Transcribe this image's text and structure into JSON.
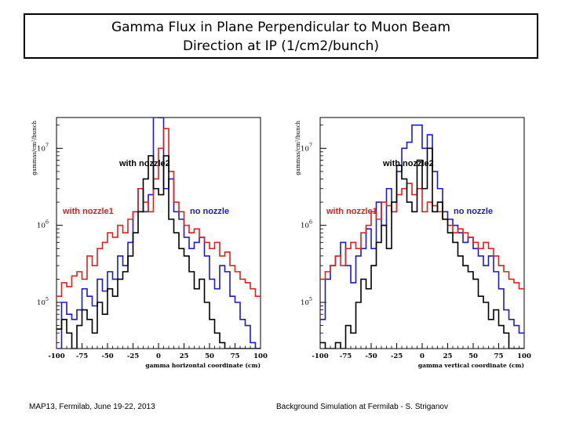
{
  "slide": {
    "title_line1": "Gamma Flux in Plane Perpendicular to Muon Beam",
    "title_line2": "Direction at IP (1/cm2/bunch)",
    "footer_left": "MAP13, Fermilab, June 19-22, 2013",
    "footer_right": "Background Simulation at Fermilab - S. Striganov"
  },
  "colors": {
    "blue": "#1a1acc",
    "red": "#e0201a",
    "black": "#000000"
  },
  "chart_data": [
    {
      "type": "line",
      "step": true,
      "ylabel": "gammas/cm²/bunch",
      "xlabel": "gamma horizontal coordinate (cm)",
      "xlim": [
        -100,
        100
      ],
      "ylim_log10": [
        4.4,
        7.4
      ],
      "x_ticks": [
        -100,
        -75,
        -50,
        -25,
        0,
        25,
        50,
        75,
        100
      ],
      "x_tick_labels": [
        "-100",
        "-75",
        "-50",
        "-25",
        "0",
        "25",
        "50",
        "75",
        "100"
      ],
      "y_ticks_log10": [
        5,
        6,
        7
      ],
      "y_tick_base": "10",
      "y_tick_exps": [
        "5",
        "6",
        "7"
      ],
      "annotations": {
        "nozzle2": "with nozzle2",
        "nozzle1": "with nozzle1",
        "nonozzle": "no nozzle"
      },
      "series": [
        {
          "name": "no nozzle",
          "color": "#1a1acc",
          "bin_width": 5,
          "values": [
            25000.0,
            100000.0,
            70000.0,
            60000.0,
            80000.0,
            150000.0,
            120000.0,
            90000.0,
            200000.0,
            140000.0,
            250000.0,
            200000.0,
            400000.0,
            300000.0,
            600000.0,
            1500000.0,
            3000000.0,
            1500000.0,
            2500000.0,
            28000000.0,
            25000000.0,
            3000000.0,
            4000000.0,
            1500000.0,
            1200000.0,
            700000.0,
            500000.0,
            600000.0,
            700000.0,
            400000.0,
            200000.0,
            150000.0,
            300000.0,
            250000.0,
            120000.0,
            100000.0,
            60000.0,
            50000.0,
            30000.0,
            25000.0
          ]
        },
        {
          "name": "with nozzle1",
          "color": "#e0201a",
          "bin_width": 5,
          "values": [
            120000.0,
            180000.0,
            160000.0,
            220000.0,
            250000.0,
            200000.0,
            400000.0,
            300000.0,
            500000.0,
            600000.0,
            800000.0,
            700000.0,
            1000000.0,
            800000.0,
            1200000.0,
            1500000.0,
            3000000.0,
            2000000.0,
            1500000.0,
            4000000.0,
            10000000.0,
            18000000.0,
            5000000.0,
            2000000.0,
            1500000.0,
            1000000.0,
            800000.0,
            900000.0,
            700000.0,
            600000.0,
            500000.0,
            600000.0,
            400000.0,
            450000.0,
            300000.0,
            250000.0,
            200000.0,
            180000.0,
            150000.0,
            120000.0
          ]
        },
        {
          "name": "with nozzle2",
          "color": "#000000",
          "bin_width": 5,
          "values": [
            45000.0,
            60000.0,
            40000.0,
            25000.0,
            50000.0,
            80000.0,
            60000.0,
            40000.0,
            100000.0,
            70000.0,
            150000.0,
            120000.0,
            200000.0,
            250000.0,
            400000.0,
            800000.0,
            1500000.0,
            4000000.0,
            8000000.0,
            3000000.0,
            2500000.0,
            8000000.0,
            1200000.0,
            800000.0,
            500000.0,
            400000.0,
            250000.0,
            150000.0,
            200000.0,
            100000.0,
            60000.0,
            40000.0,
            30000.0,
            20000.0,
            25000.0,
            12000.0,
            10000.0,
            15000.0,
            8000.0,
            8000.0
          ]
        }
      ]
    },
    {
      "type": "line",
      "step": true,
      "ylabel": "gammas/cm²/bunch",
      "xlabel": "gamma vertical coordinate (cm)",
      "xlim": [
        -100,
        100
      ],
      "ylim_log10": [
        4.4,
        7.4
      ],
      "x_ticks": [
        -100,
        -75,
        -50,
        -25,
        0,
        25,
        50,
        75,
        100
      ],
      "x_tick_labels": [
        "-100",
        "-75",
        "-50",
        "-25",
        "0",
        "25",
        "50",
        "75",
        "100"
      ],
      "y_ticks_log10": [
        5,
        6,
        7
      ],
      "y_tick_base": "10",
      "y_tick_exps": [
        "5",
        "6",
        "7"
      ],
      "annotations": {
        "nozzle2": "with nozzle2",
        "nozzle1": "with nozzle1",
        "nonozzle": "no nozzle"
      },
      "series": [
        {
          "name": "no nozzle",
          "color": "#1a1acc",
          "bin_width": 5,
          "values": [
            60000.0,
            200000.0,
            300000.0,
            400000.0,
            600000.0,
            300000.0,
            180000.0,
            400000.0,
            500000.0,
            900000.0,
            500000.0,
            2000000.0,
            1000000.0,
            3000000.0,
            1500000.0,
            5000000.0,
            10000000.0,
            12000000.0,
            20000000.0,
            20000000.0,
            10000000.0,
            15000000.0,
            5000000.0,
            3000000.0,
            1500000.0,
            1200000.0,
            1000000.0,
            800000.0,
            600000.0,
            700000.0,
            500000.0,
            400000.0,
            300000.0,
            400000.0,
            250000.0,
            150000.0,
            80000.0,
            60000.0,
            50000.0,
            40000.0
          ]
        },
        {
          "name": "with nozzle1",
          "color": "#e0201a",
          "bin_width": 5,
          "values": [
            200000.0,
            250000.0,
            300000.0,
            400000.0,
            300000.0,
            500000.0,
            600000.0,
            500000.0,
            800000.0,
            1000000.0,
            1500000.0,
            1200000.0,
            2000000.0,
            1800000.0,
            1500000.0,
            2500000.0,
            3000000.0,
            3500000.0,
            2500000.0,
            3000000.0,
            1500000.0,
            2000000.0,
            1800000.0,
            1500000.0,
            1200000.0,
            1000000.0,
            800000.0,
            900000.0,
            800000.0,
            700000.0,
            600000.0,
            500000.0,
            600000.0,
            500000.0,
            400000.0,
            300000.0,
            250000.0,
            200000.0,
            180000.0,
            150000.0
          ]
        },
        {
          "name": "with nozzle2",
          "color": "#000000",
          "bin_width": 5,
          "values": [
            30000.0,
            15000.0,
            20000.0,
            30000.0,
            25000.0,
            50000.0,
            40000.0,
            100000.0,
            200000.0,
            150000.0,
            300000.0,
            600000.0,
            1000000.0,
            500000.0,
            2000000.0,
            6000000.0,
            4000000.0,
            2000000.0,
            1500000.0,
            7000000.0,
            3000000.0,
            10000000.0,
            1500000.0,
            2000000.0,
            1200000.0,
            800000.0,
            600000.0,
            400000.0,
            300000.0,
            250000.0,
            200000.0,
            120000.0,
            100000.0,
            60000.0,
            80000.0,
            50000.0,
            40000.0,
            20000.0,
            25000.0,
            12000.0
          ]
        }
      ]
    }
  ]
}
